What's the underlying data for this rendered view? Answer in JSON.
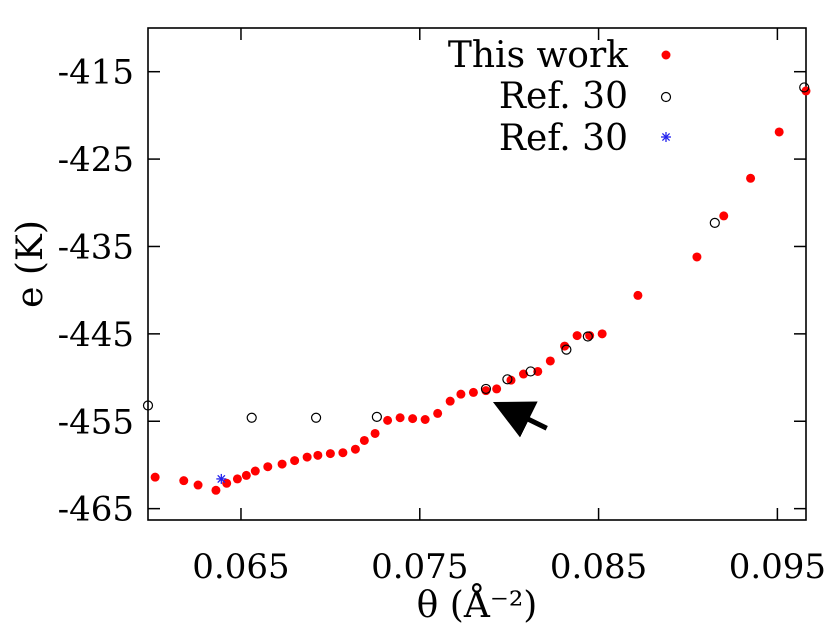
{
  "chart_data": {
    "type": "scatter",
    "title": "",
    "xlabel": "θ (Å⁻²)",
    "ylabel": "e (K)",
    "xlim": [
      0.0598,
      0.0966
    ],
    "ylim": [
      -466.3,
      -410
    ],
    "xticks": [
      0.065,
      0.075,
      0.085,
      0.095
    ],
    "xtick_labels": [
      "0.065",
      "0.075",
      "0.085",
      "0.095"
    ],
    "yticks": [
      -415,
      -425,
      -435,
      -445,
      -455,
      -465
    ],
    "ytick_labels": [
      "-415",
      "-425",
      "-435",
      "-445",
      "-455",
      "-465"
    ],
    "grid": false,
    "legend_position": "top-right",
    "series": [
      {
        "name": "This work",
        "marker": "filled-circle",
        "color": "#ff0000",
        "x": [
          0.0602,
          0.0618,
          0.0626,
          0.0636,
          0.0642,
          0.0648,
          0.0653,
          0.0658,
          0.0665,
          0.0673,
          0.068,
          0.0687,
          0.0693,
          0.07,
          0.0707,
          0.0714,
          0.0719,
          0.0725,
          0.0732,
          0.0739,
          0.0746,
          0.0753,
          0.076,
          0.0767,
          0.0773,
          0.078,
          0.0787,
          0.0793,
          0.0801,
          0.0808,
          0.0816,
          0.0823,
          0.0831,
          0.0838,
          0.0845,
          0.0852,
          0.0872,
          0.0905,
          0.092,
          0.0935,
          0.0951,
          0.0966
        ],
        "y": [
          -461.4,
          -461.8,
          -462.3,
          -462.9,
          -462.1,
          -461.6,
          -461.2,
          -460.7,
          -460.2,
          -459.9,
          -459.5,
          -459.1,
          -458.9,
          -458.7,
          -458.6,
          -458.2,
          -457.2,
          -456.4,
          -454.9,
          -454.6,
          -454.7,
          -454.8,
          -454.1,
          -452.7,
          -451.9,
          -451.7,
          -451.5,
          -451.3,
          -450.3,
          -449.6,
          -449.3,
          -448.1,
          -446.4,
          -445.2,
          -445.2,
          -445.0,
          -440.6,
          -436.2,
          -431.5,
          -427.2,
          -421.9,
          -417.2
        ],
        "mark_name": "this-work-point"
      },
      {
        "name": "Ref. 30",
        "marker": "open-circle",
        "color": "#000000",
        "x": [
          0.0598,
          0.0656,
          0.0692,
          0.0726,
          0.0787,
          0.0799,
          0.0812,
          0.0832,
          0.0844,
          0.0915,
          0.0965
        ],
        "y": [
          -453.2,
          -454.6,
          -454.6,
          -454.5,
          -451.3,
          -450.2,
          -449.3,
          -446.8,
          -445.3,
          -432.3,
          -416.8
        ],
        "mark_name": "ref30-open-circle-point"
      },
      {
        "name": "Ref. 30",
        "marker": "asterisk",
        "color": "#2222ee",
        "x": [
          0.0639
        ],
        "y": [
          -461.6
        ],
        "mark_name": "ref30-asterisk-point"
      }
    ],
    "annotations": [
      {
        "type": "arrow",
        "from": [
          0.0821,
          -455.8
        ],
        "to": [
          0.0806,
          -454.3
        ],
        "color": "#000000"
      }
    ]
  }
}
